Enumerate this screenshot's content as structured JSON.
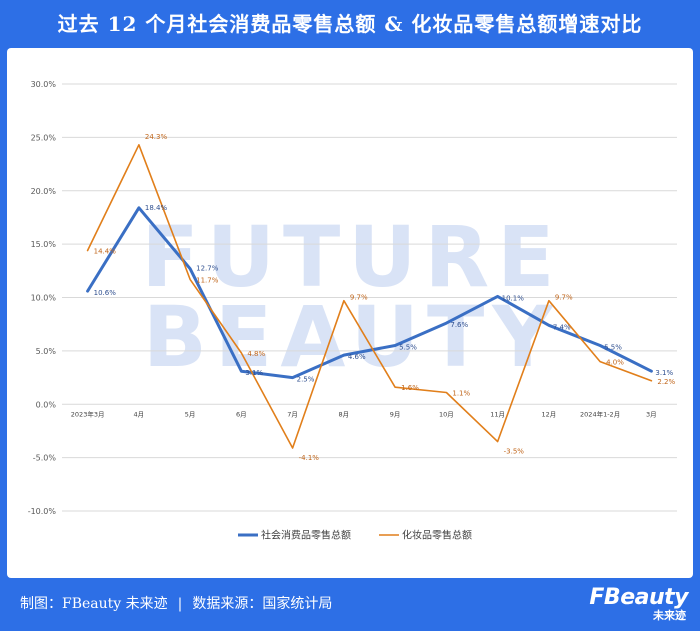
{
  "page": {
    "title": "过去 12 个月社会消费品零售总额 & 化妆品零售总额增速对比",
    "credit_label": "制图：FBeauty 未来迹",
    "separator": "|",
    "source_label": "数据来源：国家统计局",
    "watermark_lines": [
      "FUTURE",
      "BEAUTY"
    ],
    "brand_main": "FBeauty",
    "brand_sub": "未来迹"
  },
  "colors": {
    "background": "#2d6fe6",
    "retail_series": "#3a6fc4",
    "cosmetics_series": "#e17f1b",
    "watermark": "#d9e3f6"
  },
  "chart_data": {
    "type": "line",
    "categories": [
      "2023年3月",
      "4月",
      "5月",
      "6月",
      "7月",
      "8月",
      "9月",
      "10月",
      "11月",
      "12月",
      "2024年1-2月",
      "3月"
    ],
    "y_ticks": [
      "30.0%",
      "25.0%",
      "20.0%",
      "15.0%",
      "10.0%",
      "5.0%",
      "0.0%",
      "-5.0%",
      "-10.0%"
    ],
    "ylim": [
      -10,
      30
    ],
    "y_unit": "%",
    "grid": true,
    "legend_position": "bottom",
    "series": [
      {
        "name": "社会消费品零售总额",
        "values": [
          10.6,
          18.4,
          12.7,
          3.1,
          2.5,
          4.6,
          5.5,
          7.6,
          10.1,
          7.4,
          5.5,
          3.1
        ],
        "labels": [
          "10.6%",
          "18.4%",
          "12.7%",
          "3.1%",
          "2.5%",
          "4.6%",
          "5.5%",
          "7.6%",
          "10.1%",
          "7.4%",
          "5.5%",
          "3.1%"
        ]
      },
      {
        "name": "化妆品零售总额",
        "values": [
          14.4,
          24.3,
          11.7,
          4.8,
          -4.1,
          9.7,
          1.6,
          1.1,
          -3.5,
          9.7,
          4.0,
          2.2
        ],
        "labels": [
          "14.4%",
          "24.3%",
          "11.7%",
          "4.8%",
          "-4.1%",
          "9.7%",
          "1.6%",
          "1.1%",
          "-3.5%",
          "9.7%",
          "4.0%",
          "2.2%"
        ]
      }
    ]
  }
}
